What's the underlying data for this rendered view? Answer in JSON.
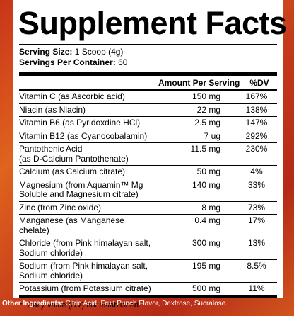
{
  "panel": {
    "title": "Supplement Facts",
    "serving_size_label": "Serving Size:",
    "serving_size_value": "1 Scoop (4g)",
    "servings_label": "Servings Per Container:",
    "servings_value": "60",
    "col_amount": "Amount Per Serving",
    "col_dv": "%DV",
    "rows": [
      {
        "name": "Vitamin C (as Ascorbic acid)",
        "amount": "150 mg",
        "dv": "167%"
      },
      {
        "name": "Niacin (as Niacin)",
        "amount": "22 mg",
        "dv": "138%"
      },
      {
        "name": "Vitamin B6 (as Pyridoxdine HCl)",
        "amount": "2.5 mg",
        "dv": "147%"
      },
      {
        "name": "Vitamin B12 (as Cyanocobalamin)",
        "amount": "7 ug",
        "dv": "292%"
      },
      {
        "name": "Pantothenic Acid\n(as D-Calcium Pantothenate)",
        "amount": "11.5 mg",
        "dv": "230%"
      },
      {
        "name": "Calcium (as Calcium citrate)",
        "amount": "50 mg",
        "dv": "4%"
      },
      {
        "name": "Magnesium (from Aquamin™ Mg\nSoluble and Magnesium citrate)",
        "amount": "140 mg",
        "dv": "33%"
      },
      {
        "name": "Zinc (from Zinc oxide)",
        "amount": "8 mg",
        "dv": "73%"
      },
      {
        "name": "Manganese (as Manganese chelate)",
        "amount": "0.4 mg",
        "dv": "17%"
      },
      {
        "name": "Chloride (from Pink himalayan salt,\nSodium chloride)",
        "amount": "300 mg",
        "dv": "13%"
      },
      {
        "name": "Sodium (from Pink himalayan salt,\nSodium chloride)",
        "amount": "195 mg",
        "dv": "8.5%"
      },
      {
        "name": "Potassium (from Potassium citrate)",
        "amount": "500 mg",
        "dv": "11%"
      }
    ],
    "footnote": "** Daily Value (DV) not established"
  },
  "other": {
    "label": "Other Ingredients:",
    "text": " Citric Acid, Fruit Punch Flavor, Dextrose, Sucralose."
  }
}
